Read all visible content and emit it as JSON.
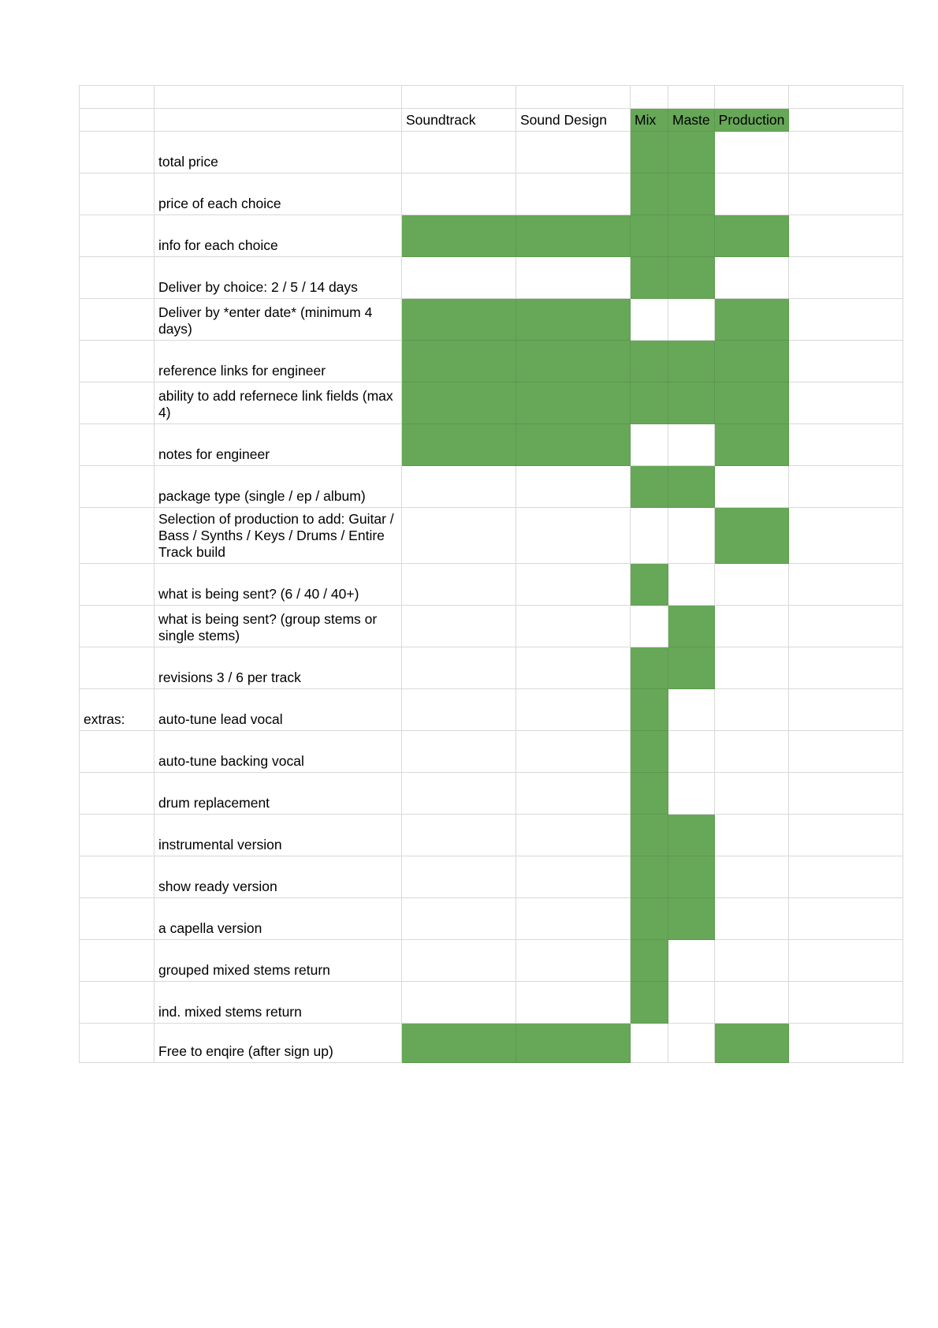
{
  "columns": [
    "Soundtrack",
    "Sound Design",
    "Mix",
    "Maste",
    "Production"
  ],
  "highlight_color": "#67a758",
  "extras_label": "extras:",
  "rows": [
    {
      "label": "total price",
      "marks": [
        0,
        0,
        1,
        1,
        0
      ]
    },
    {
      "label": "price of each choice",
      "marks": [
        0,
        0,
        1,
        1,
        0
      ]
    },
    {
      "label": "info for each choice",
      "marks": [
        1,
        1,
        1,
        1,
        1
      ]
    },
    {
      "label": "Deliver by choice: 2 / 5 / 14 days",
      "marks": [
        0,
        0,
        1,
        1,
        0
      ]
    },
    {
      "label": "Deliver by *enter date* (minimum 4 days)",
      "marks": [
        1,
        1,
        0,
        0,
        1
      ]
    },
    {
      "label": "reference links for engineer",
      "marks": [
        1,
        1,
        1,
        1,
        1
      ]
    },
    {
      "label": "ability to add refernece link fields (max 4)",
      "marks": [
        1,
        1,
        1,
        1,
        1
      ]
    },
    {
      "label": "notes for engineer",
      "marks": [
        1,
        1,
        0,
        0,
        1
      ]
    },
    {
      "label": "package type (single / ep / album)",
      "marks": [
        0,
        0,
        1,
        1,
        0
      ]
    },
    {
      "label": "Selection of production to add: Guitar / Bass / Synths / Keys / Drums / Entire Track build",
      "marks": [
        0,
        0,
        0,
        0,
        1
      ]
    },
    {
      "label": "what is being sent? (6 / 40 / 40+)",
      "marks": [
        0,
        0,
        1,
        0,
        0
      ]
    },
    {
      "label": "what is being sent? (group stems or single stems)",
      "marks": [
        0,
        0,
        0,
        1,
        0
      ]
    },
    {
      "label": "revisions 3 / 6 per track",
      "marks": [
        0,
        0,
        1,
        1,
        0
      ]
    },
    {
      "label": "auto-tune lead vocal",
      "marks": [
        0,
        0,
        1,
        0,
        0
      ],
      "extras": true
    },
    {
      "label": "auto-tune backing vocal",
      "marks": [
        0,
        0,
        1,
        0,
        0
      ]
    },
    {
      "label": "drum replacement",
      "marks": [
        0,
        0,
        1,
        0,
        0
      ]
    },
    {
      "label": "instrumental version",
      "marks": [
        0,
        0,
        1,
        1,
        0
      ]
    },
    {
      "label": "show ready version",
      "marks": [
        0,
        0,
        1,
        1,
        0
      ]
    },
    {
      "label": "a capella version",
      "marks": [
        0,
        0,
        1,
        1,
        0
      ]
    },
    {
      "label": "grouped mixed stems return",
      "marks": [
        0,
        0,
        1,
        0,
        0
      ]
    },
    {
      "label": "ind. mixed stems return",
      "marks": [
        0,
        0,
        1,
        0,
        0
      ]
    },
    {
      "label": "Free to enqire (after sign up)",
      "marks": [
        1,
        1,
        0,
        0,
        1
      ]
    }
  ]
}
